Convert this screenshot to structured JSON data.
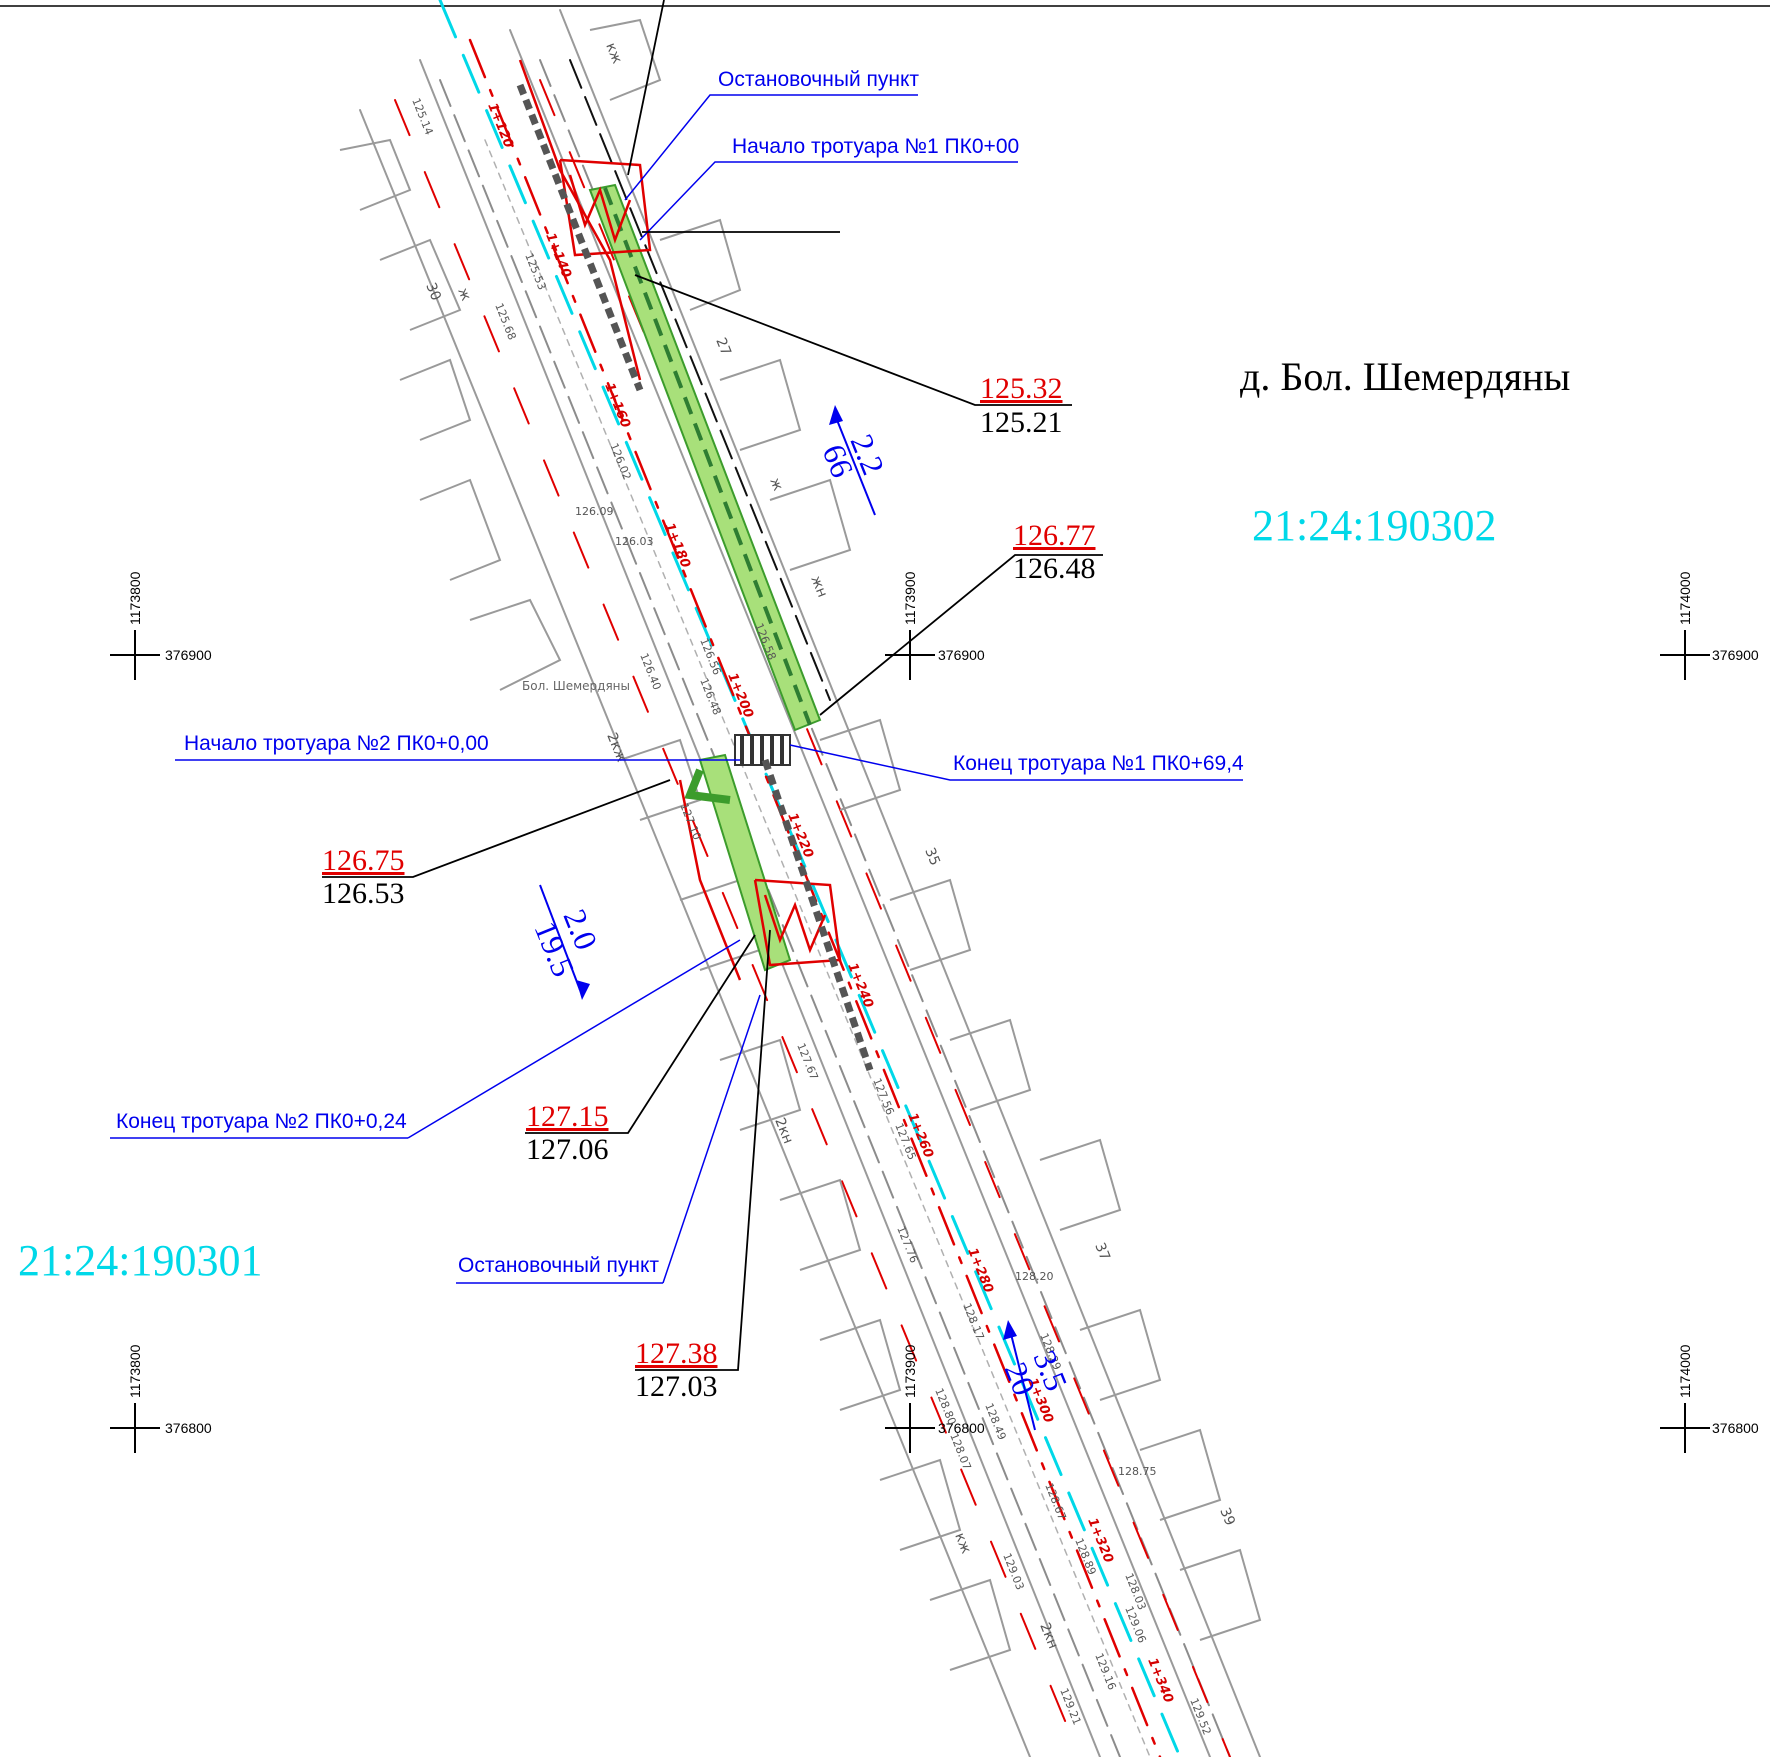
{
  "settlement": "д. Бол. Шемердяны",
  "settlement_small": "Бол. Шемердяны",
  "cadastral": [
    "21:24:190302",
    "21:24:190301"
  ],
  "callouts": {
    "stop_top": "Остановочный пункт",
    "start_walk1": "Начало тротуара №1 ПК0+00",
    "start_walk2": "Начало тротуара №2 ПК0+0,00",
    "end_walk1": "Конец тротуара №1 ПК0+69,4",
    "end_walk2": "Конец тротуара №2 ПК0+0,24",
    "stop_bottom": "Остановочный пункт"
  },
  "elevations": [
    {
      "red": "125.32",
      "black": "125.21"
    },
    {
      "red": "126.77",
      "black": "126.48"
    },
    {
      "red": "126.75",
      "black": "126.53"
    },
    {
      "red": "127.15",
      "black": "127.06"
    },
    {
      "red": "127.38",
      "black": "127.03"
    }
  ],
  "slopes": [
    {
      "top": "2.2",
      "bottom": "66"
    },
    {
      "top": "2.0",
      "bottom": "19.5"
    },
    {
      "top": "3.5",
      "bottom": "20"
    }
  ],
  "grid": {
    "x_a": "1173800",
    "x_b": "1173900",
    "x_c": "1174000",
    "y_a": "376900",
    "y_b": "376800"
  },
  "pickets": [
    "1+120",
    "1+140",
    "1+160",
    "1+180",
    "1+200",
    "1+220",
    "1+240",
    "1+260",
    "1+280",
    "1+300",
    "1+320",
    "1+340"
  ],
  "survey_points": [
    "125.14",
    "125.68",
    "125.53",
    "126.02",
    "126.09",
    "126.03",
    "126.40",
    "126.56",
    "126.58",
    "126.48",
    "127.10",
    "127.67",
    "127.56",
    "127.65",
    "127.76",
    "128.17",
    "128.20",
    "128.29",
    "128.75",
    "128.67",
    "128.89",
    "128.03",
    "129.06",
    "129.16",
    "129.21",
    "129.52",
    "128.80",
    "128.07",
    "128.49",
    "129.03"
  ],
  "house_marks": [
    "ж",
    "кж",
    "жн",
    "2кн",
    "2кж",
    "35",
    "37",
    "39",
    "30",
    "27",
    "н"
  ]
}
